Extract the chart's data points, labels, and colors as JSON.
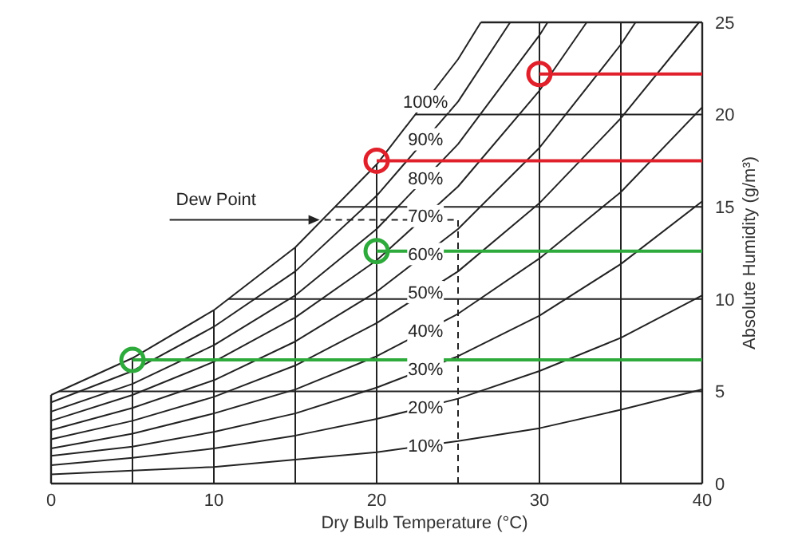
{
  "chart_data": {
    "type": "line",
    "xlabel": "Dry Bulb Temperature (°C)",
    "ylabel": "Absolute Humidity (g/m³)",
    "xlim": [
      0,
      40
    ],
    "ylim": [
      0,
      25
    ],
    "xticks": [
      0,
      {
        "value": 5,
        "label": null
      },
      10,
      {
        "value": 15,
        "label": null
      },
      20,
      30,
      {
        "value": 35,
        "label": null
      },
      40
    ],
    "yticks": [
      0,
      5,
      10,
      15,
      20,
      25
    ],
    "grid": true,
    "legend": false,
    "marker": "none",
    "line_style": "solid",
    "series": [
      {
        "name": "100%",
        "color": "#222222",
        "x": [
          0,
          5,
          10,
          15,
          20,
          25,
          26.4
        ],
        "values": [
          4.8,
          6.8,
          9.4,
          12.8,
          17.3,
          23.0,
          25
        ]
      },
      {
        "name": "90%",
        "color": "#222222",
        "x": [
          0,
          5,
          10,
          15,
          20,
          25,
          28.2
        ],
        "values": [
          4.4,
          6.1,
          8.5,
          11.5,
          15.6,
          20.7,
          25
        ]
      },
      {
        "name": "80%",
        "color": "#222222",
        "x": [
          0,
          5,
          10,
          15,
          20,
          25,
          30,
          30.5
        ],
        "values": [
          3.9,
          5.4,
          7.5,
          10.2,
          13.8,
          18.4,
          24.3,
          25
        ]
      },
      {
        "name": "70%",
        "color": "#222222",
        "x": [
          0,
          5,
          10,
          15,
          20,
          25,
          30,
          32.9
        ],
        "values": [
          3.4,
          4.8,
          6.6,
          9.0,
          12.1,
          16.1,
          21.3,
          25
        ]
      },
      {
        "name": "60%",
        "color": "#222222",
        "x": [
          0,
          5,
          10,
          15,
          20,
          25,
          30,
          35,
          35.9
        ],
        "values": [
          2.9,
          4.1,
          5.6,
          7.7,
          10.4,
          13.8,
          18.2,
          23.8,
          25
        ]
      },
      {
        "name": "50%",
        "color": "#222222",
        "x": [
          0,
          5,
          10,
          15,
          20,
          25,
          30,
          35,
          39.8
        ],
        "values": [
          2.4,
          3.4,
          4.7,
          6.4,
          8.7,
          11.5,
          15.2,
          19.8,
          25
        ]
      },
      {
        "name": "40%",
        "color": "#222222",
        "x": [
          0,
          5,
          10,
          15,
          20,
          25,
          30,
          35,
          40
        ],
        "values": [
          1.9,
          2.7,
          3.8,
          5.1,
          6.9,
          9.2,
          12.2,
          15.8,
          20.4
        ]
      },
      {
        "name": "30%",
        "color": "#222222",
        "x": [
          0,
          5,
          10,
          15,
          20,
          25,
          30,
          35,
          40
        ],
        "values": [
          1.5,
          2.0,
          2.8,
          3.8,
          5.2,
          6.9,
          9.1,
          11.9,
          15.3
        ]
      },
      {
        "name": "20%",
        "color": "#222222",
        "x": [
          0,
          5,
          10,
          15,
          20,
          25,
          30,
          35,
          40
        ],
        "values": [
          1.0,
          1.4,
          1.9,
          2.6,
          3.5,
          4.6,
          6.1,
          7.9,
          10.2
        ]
      },
      {
        "name": "10%",
        "color": "#222222",
        "x": [
          0,
          5,
          10,
          15,
          20,
          25,
          30,
          35,
          40
        ],
        "values": [
          0.5,
          0.7,
          0.9,
          1.3,
          1.7,
          2.3,
          3.0,
          4.0,
          5.1
        ]
      },
      {
        "color": "#222222",
        "x": [
          25,
          25,
          16.5
        ],
        "values": [
          0,
          14.3,
          14.3
        ],
        "line_style": "dashed"
      },
      {
        "color": "#e0202a",
        "x": [
          20,
          40
        ],
        "values": [
          17.5,
          17.5
        ]
      },
      {
        "color": "#e0202a",
        "x": [
          30,
          40
        ],
        "values": [
          22.2,
          22.2
        ]
      },
      {
        "color": "#2eaa3c",
        "x": [
          20,
          40
        ],
        "values": [
          12.6,
          12.6
        ]
      },
      {
        "color": "#2eaa3c",
        "x": [
          5,
          40
        ],
        "values": [
          6.7,
          6.7
        ]
      },
      {
        "type": "scatter",
        "marker": "circle",
        "color": "#e0202a",
        "x": [
          20,
          30
        ],
        "values": [
          17.5,
          22.2
        ]
      },
      {
        "type": "scatter",
        "marker": "circle",
        "color": "#2eaa3c",
        "x": [
          5,
          20
        ],
        "values": [
          6.7,
          12.6
        ]
      }
    ],
    "annotations": [
      {
        "text": "Dew Point",
        "x": 16.5,
        "y": 14.3
      }
    ]
  }
}
